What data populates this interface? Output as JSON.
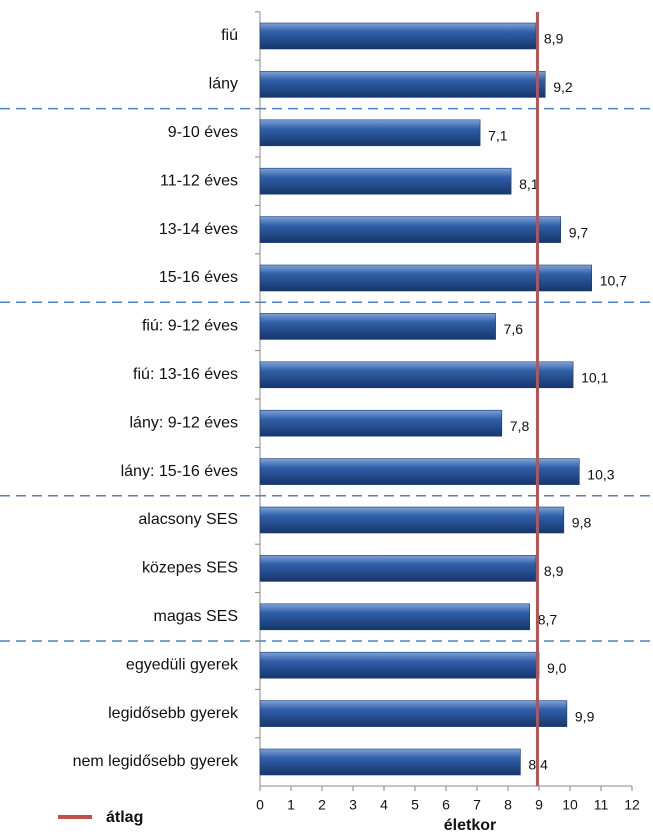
{
  "chart_data": {
    "type": "bar",
    "orientation": "horizontal",
    "categories": [
      "fiú",
      "lány",
      "9-10 éves",
      "11-12 éves",
      "13-14 éves",
      "15-16 éves",
      "fiú: 9-12 éves",
      "fiú: 13-16 éves",
      "lány: 9-12 éves",
      "lány: 15-16 éves",
      "alacsony SES",
      "közepes SES",
      "magas SES",
      "egyedüli gyerek",
      "legidősebb gyerek",
      "nem legidősebb gyerek"
    ],
    "values": [
      8.9,
      9.2,
      7.1,
      8.1,
      9.7,
      10.7,
      7.6,
      10.1,
      7.8,
      10.3,
      9.8,
      8.9,
      8.7,
      9.0,
      9.9,
      8.4
    ],
    "value_labels": [
      "8,9",
      "9,2",
      "7,1",
      "8,1",
      "9,7",
      "10,7",
      "7,6",
      "10,1",
      "7,8",
      "10,3",
      "9,8",
      "8,9",
      "8,7",
      "9,0",
      "9,9",
      "8,4"
    ],
    "color": "#2b5aa0",
    "xlim": [
      0,
      12
    ],
    "xticks": [
      0,
      1,
      2,
      3,
      4,
      5,
      6,
      7,
      8,
      9,
      10,
      11,
      12
    ],
    "xlabel": "életkor",
    "average": {
      "name": "átlag",
      "value": 8.95,
      "color": "#c0504d"
    },
    "legend": "bottom-left"
  }
}
